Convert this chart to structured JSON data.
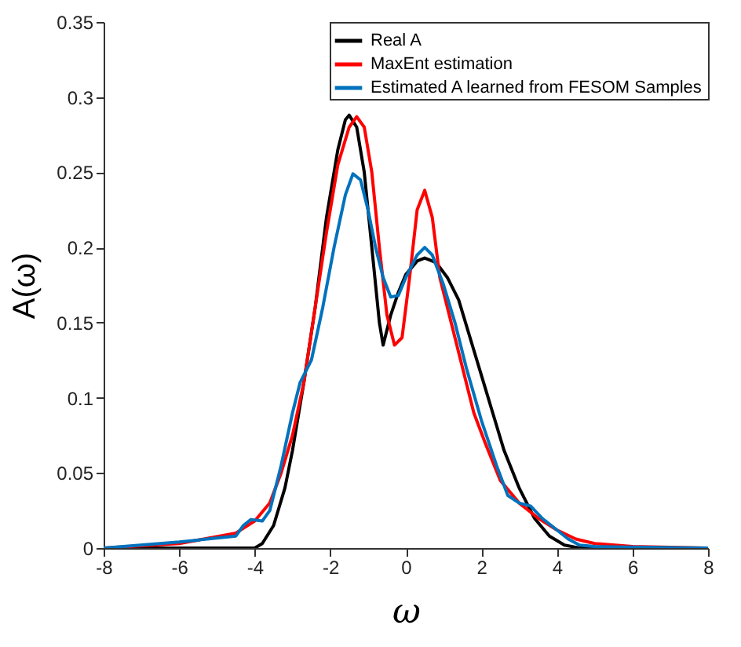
{
  "chart_data": {
    "type": "line",
    "xlabel": "ω",
    "ylabel": "A(ω)",
    "xlim": [
      -8,
      8
    ],
    "xticks": [
      -8,
      -6,
      -4,
      -2,
      0,
      2,
      4,
      6,
      8
    ],
    "ylim": [
      0,
      0.35
    ],
    "yticks": [
      0,
      0.05,
      0.1,
      0.15,
      0.2,
      0.25,
      0.3,
      0.35
    ],
    "grid": false,
    "legend": "top right",
    "marker": "none",
    "line_style": "solid",
    "series": [
      {
        "name": "Real A",
        "color": "#000000",
        "x": [
          -8,
          -4,
          -3.8,
          -3.5,
          -3.2,
          -3,
          -2.7,
          -2.4,
          -2.1,
          -1.8,
          -1.6,
          -1.5,
          -1.3,
          -1.1,
          -0.9,
          -0.7,
          -0.6,
          -0.4,
          -0.2,
          0,
          0.3,
          0.5,
          0.8,
          1.1,
          1.4,
          1.7,
          2,
          2.3,
          2.6,
          3,
          3.4,
          3.8,
          4.2,
          4.6,
          8
        ],
        "values": [
          0,
          0,
          0.003,
          0.015,
          0.04,
          0.065,
          0.11,
          0.16,
          0.22,
          0.265,
          0.285,
          0.288,
          0.28,
          0.25,
          0.2,
          0.15,
          0.135,
          0.155,
          0.17,
          0.182,
          0.191,
          0.193,
          0.19,
          0.18,
          0.165,
          0.14,
          0.115,
          0.09,
          0.065,
          0.04,
          0.02,
          0.008,
          0.002,
          0,
          0
        ]
      },
      {
        "name": "MaxEnt estimation",
        "color": "#ff0000",
        "x": [
          -8,
          -6,
          -4.5,
          -4,
          -3.6,
          -3.3,
          -3,
          -2.7,
          -2.4,
          -2.1,
          -1.8,
          -1.5,
          -1.3,
          -1.1,
          -0.9,
          -0.7,
          -0.5,
          -0.3,
          -0.1,
          0.1,
          0.3,
          0.5,
          0.7,
          0.9,
          1.2,
          1.5,
          1.8,
          2.1,
          2.5,
          3,
          3.5,
          4,
          4.5,
          5,
          6,
          8
        ],
        "values": [
          0,
          0.003,
          0.01,
          0.018,
          0.03,
          0.05,
          0.075,
          0.11,
          0.16,
          0.21,
          0.255,
          0.28,
          0.287,
          0.28,
          0.25,
          0.2,
          0.155,
          0.135,
          0.14,
          0.18,
          0.225,
          0.238,
          0.22,
          0.18,
          0.15,
          0.12,
          0.09,
          0.07,
          0.045,
          0.03,
          0.02,
          0.012,
          0.006,
          0.003,
          0.001,
          0
        ]
      },
      {
        "name": "Estimated A learned from FESOM Samples",
        "color": "#0072bd",
        "x": [
          -8,
          -6,
          -4.5,
          -4.3,
          -4.1,
          -3.8,
          -3.6,
          -3.3,
          -3,
          -2.8,
          -2.5,
          -2.2,
          -1.9,
          -1.6,
          -1.4,
          -1.2,
          -1,
          -0.8,
          -0.6,
          -0.4,
          -0.2,
          0,
          0.3,
          0.5,
          0.7,
          1,
          1.3,
          1.6,
          2,
          2.4,
          2.7,
          3,
          3.3,
          3.6,
          4,
          4.3,
          4.6,
          5,
          8
        ],
        "values": [
          0,
          0.004,
          0.008,
          0.015,
          0.019,
          0.018,
          0.025,
          0.055,
          0.09,
          0.11,
          0.125,
          0.16,
          0.2,
          0.235,
          0.249,
          0.245,
          0.225,
          0.2,
          0.18,
          0.167,
          0.168,
          0.18,
          0.195,
          0.2,
          0.195,
          0.175,
          0.15,
          0.12,
          0.085,
          0.055,
          0.035,
          0.03,
          0.028,
          0.02,
          0.012,
          0.006,
          0.002,
          0.001,
          0
        ]
      }
    ]
  }
}
